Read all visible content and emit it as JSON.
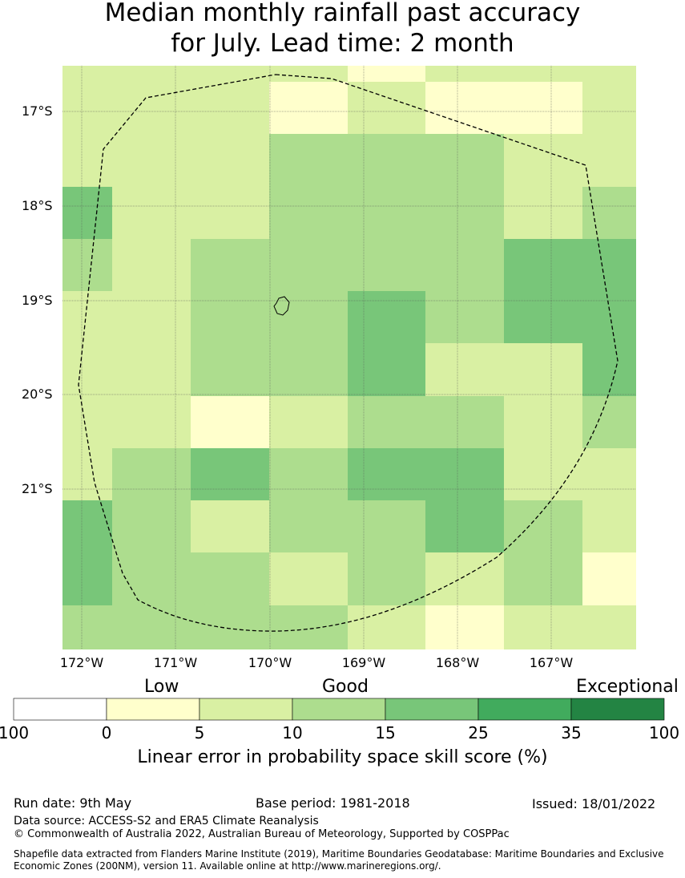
{
  "title_line1": "Median monthly rainfall past accuracy",
  "title_line2": "for July. Lead time: 2 month",
  "map_data": {
    "lat_labels": [
      "17°S",
      "18°S",
      "19°S",
      "20°S",
      "21°S"
    ],
    "lon_labels": [
      "172°W",
      "171°W",
      "170°W",
      "169°W",
      "168°W",
      "167°W"
    ],
    "category_colors": {
      "0-5": "#ffffcc",
      "5-10": "#d9f0a3",
      "10-15": "#addd8e",
      "15-25": "#78c679",
      "25-35": "#41ab5d",
      "35-100": "#238443"
    }
  },
  "legend": {
    "categories": [
      "Low",
      "Good",
      "Exceptional"
    ],
    "ticks": [
      "100",
      "0",
      "5",
      "10",
      "15",
      "25",
      "35",
      "100"
    ],
    "colors": [
      "#ffffff",
      "#ffffcc",
      "#d9f0a3",
      "#addd8e",
      "#78c679",
      "#41ab5d",
      "#238443"
    ],
    "label": "Linear error in probability space skill score (%)"
  },
  "footer": {
    "run_date": "Run date: 9th May",
    "base_period": "Base period: 1981-2018",
    "issued": "Issued: 18/01/2022",
    "data_source": "Data source: ACCESS-S2 and ERA5 Climate Reanalysis",
    "copyright": "© Commonwealth of Australia 2022, Australian Bureau of Meteorology, Supported by COSPPac",
    "shapefile_line1": "Shapefile data extracted from Flanders Marine Institute (2019), Maritime Boundaries Geodatabase: Maritime Boundaries and Exclusive",
    "shapefile_line2": "Economic Zones (200NM), version 11. Available online at http://www.marineregions.org/."
  }
}
